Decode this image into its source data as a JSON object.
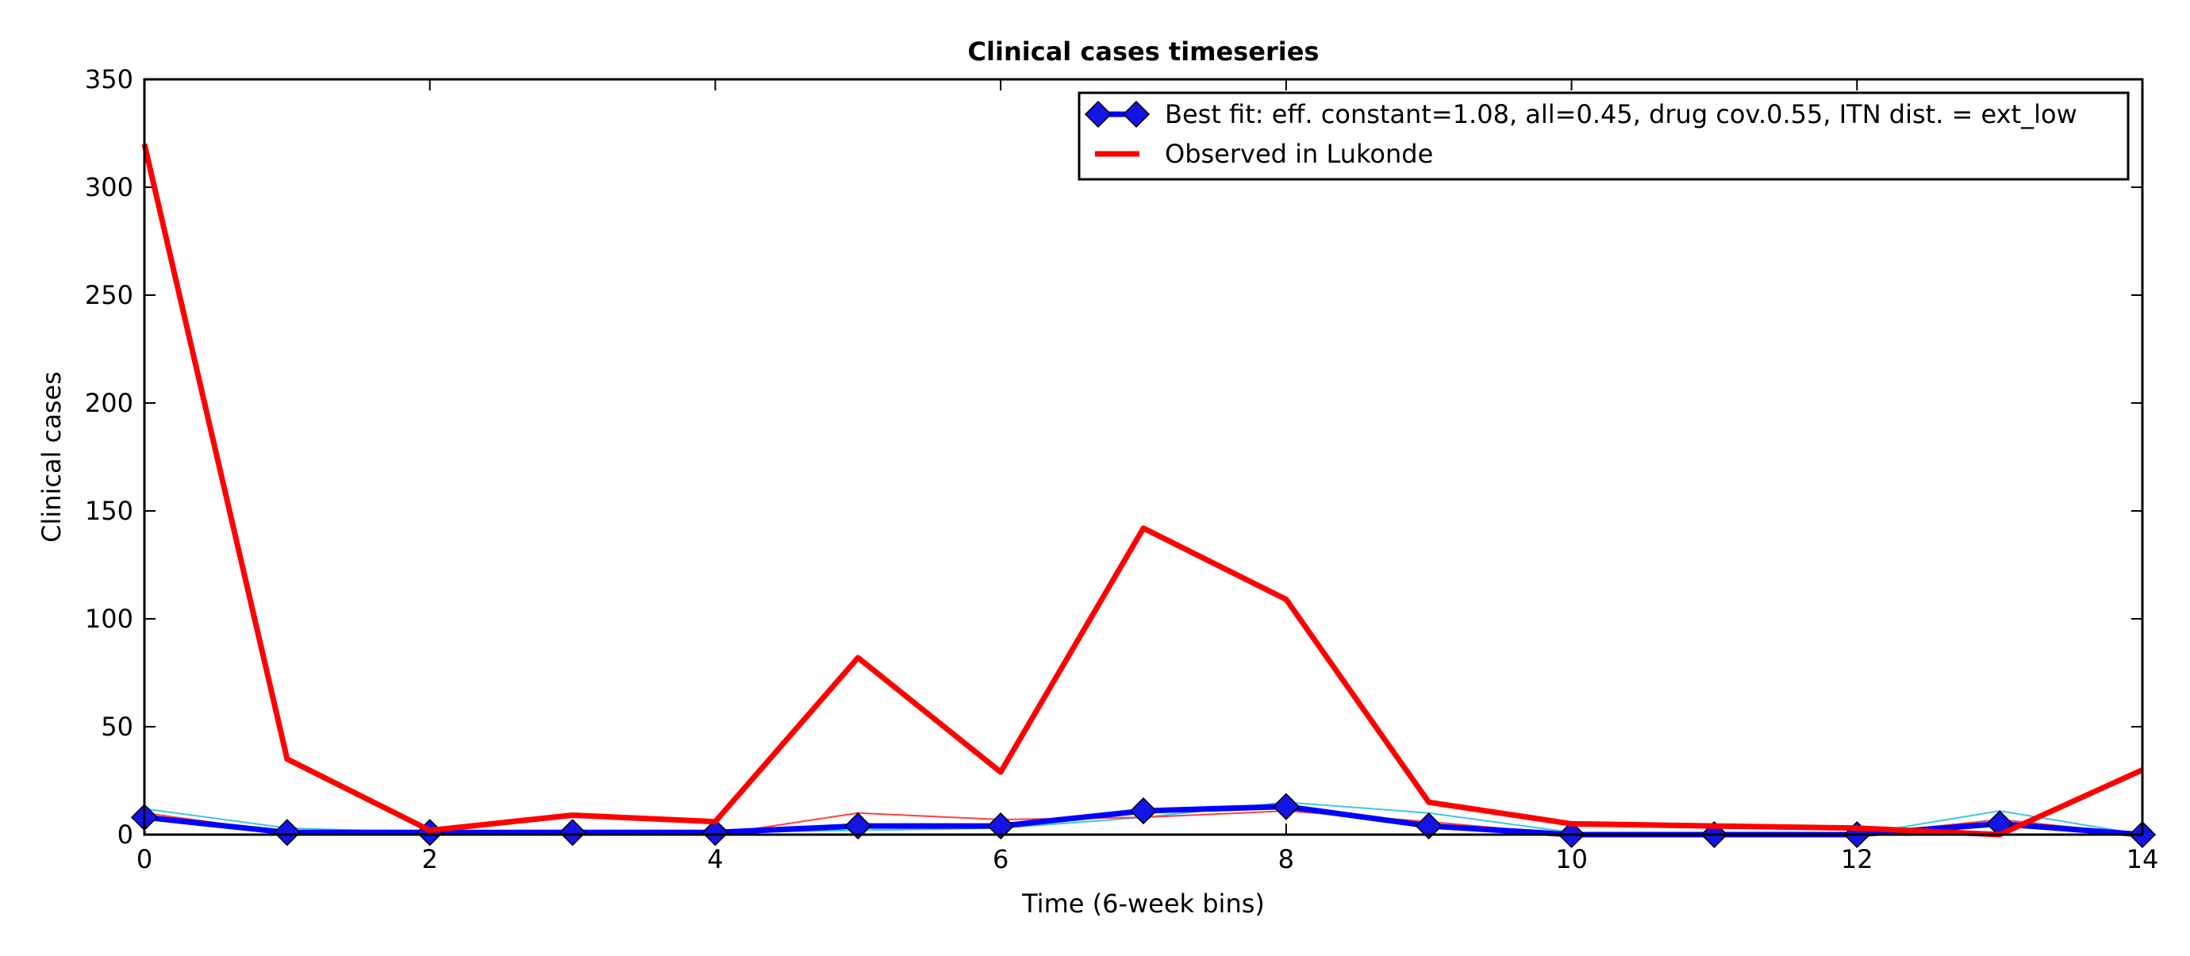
{
  "chart_data": {
    "type": "line",
    "title": "Clinical cases timeseries",
    "xlabel": "Time (6-week bins)",
    "ylabel": "Clinical cases",
    "xlim": [
      0,
      14
    ],
    "ylim": [
      0,
      350
    ],
    "xticks": [
      0,
      2,
      4,
      6,
      8,
      10,
      12,
      14
    ],
    "yticks": [
      0,
      50,
      100,
      150,
      200,
      250,
      300,
      350
    ],
    "grid": false,
    "legend_position": "top-right",
    "x": [
      0,
      1,
      2,
      3,
      4,
      5,
      6,
      7,
      8,
      9,
      10,
      11,
      12,
      13,
      14
    ],
    "series": [
      {
        "name": "Best fit: eff. constant=1.08, all=0.45, drug cov.0.55, ITN dist. = ext_low",
        "legend": true,
        "style": "line-diamond",
        "color": "#0000ff",
        "marker_color": "#1414e6",
        "values": [
          8,
          1,
          1,
          1,
          1,
          4,
          4,
          11,
          13,
          4,
          0,
          0,
          0,
          5,
          0
        ]
      },
      {
        "name": "Observed in Lukonde",
        "legend": true,
        "style": "thick-line",
        "color": "#ff0000",
        "values": [
          320,
          35,
          2,
          9,
          6,
          82,
          29,
          142,
          109,
          15,
          5,
          4,
          3,
          0,
          30
        ]
      },
      {
        "legend": false,
        "style": "thin-line",
        "color": "#3fc6df",
        "values": [
          12,
          3,
          1,
          1,
          1,
          2,
          3,
          8,
          15,
          10,
          1,
          0,
          0,
          11,
          0
        ]
      },
      {
        "legend": false,
        "style": "thin-line",
        "color": "#ff4040",
        "values": [
          10,
          1,
          0,
          0,
          0,
          10,
          7,
          8,
          11,
          6,
          0,
          0,
          0,
          7,
          0
        ]
      }
    ]
  }
}
